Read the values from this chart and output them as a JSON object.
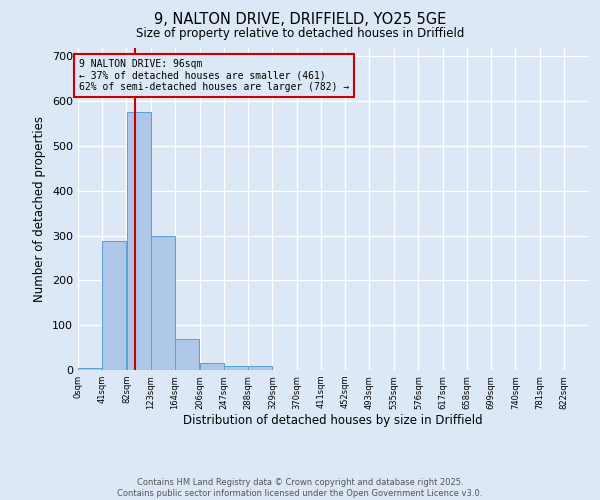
{
  "title": "9, NALTON DRIVE, DRIFFIELD, YO25 5GE",
  "subtitle": "Size of property relative to detached houses in Driffield",
  "xlabel": "Distribution of detached houses by size in Driffield",
  "ylabel": "Number of detached properties",
  "bin_labels": [
    "0sqm",
    "41sqm",
    "82sqm",
    "123sqm",
    "164sqm",
    "206sqm",
    "247sqm",
    "288sqm",
    "329sqm",
    "370sqm",
    "411sqm",
    "452sqm",
    "493sqm",
    "535sqm",
    "576sqm",
    "617sqm",
    "658sqm",
    "699sqm",
    "740sqm",
    "781sqm",
    "822sqm"
  ],
  "bin_edges": [
    0,
    41,
    82,
    123,
    164,
    206,
    247,
    288,
    329,
    370,
    411,
    452,
    493,
    535,
    576,
    617,
    658,
    699,
    740,
    781,
    822
  ],
  "bar_heights": [
    5,
    289,
    575,
    300,
    70,
    15,
    10,
    10,
    0,
    0,
    0,
    0,
    0,
    0,
    0,
    0,
    0,
    0,
    0,
    0
  ],
  "bar_color": "#aec6e8",
  "bar_edge_color": "#5a9fd4",
  "property_size": 96,
  "annotation_line1": "9 NALTON DRIVE: 96sqm",
  "annotation_line2": "← 37% of detached houses are smaller (461)",
  "annotation_line3": "62% of semi-detached houses are larger (782) →",
  "vline_color": "#cc0000",
  "annotation_box_color": "#cc0000",
  "ylim": [
    0,
    720
  ],
  "yticks": [
    0,
    100,
    200,
    300,
    400,
    500,
    600,
    700
  ],
  "background_color": "#dce8f5",
  "grid_color": "#ffffff",
  "footer_line1": "Contains HM Land Registry data © Crown copyright and database right 2025.",
  "footer_line2": "Contains public sector information licensed under the Open Government Licence v3.0."
}
